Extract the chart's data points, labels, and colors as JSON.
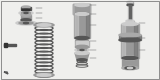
{
  "bg_color": "#efefed",
  "line_color": "#666666",
  "part_color": "#999999",
  "dark_color": "#555555",
  "light_color": "#cccccc",
  "mid_color": "#aaaaaa",
  "very_dark": "#333333",
  "fig_width": 1.6,
  "fig_height": 0.8,
  "dpi": 100
}
